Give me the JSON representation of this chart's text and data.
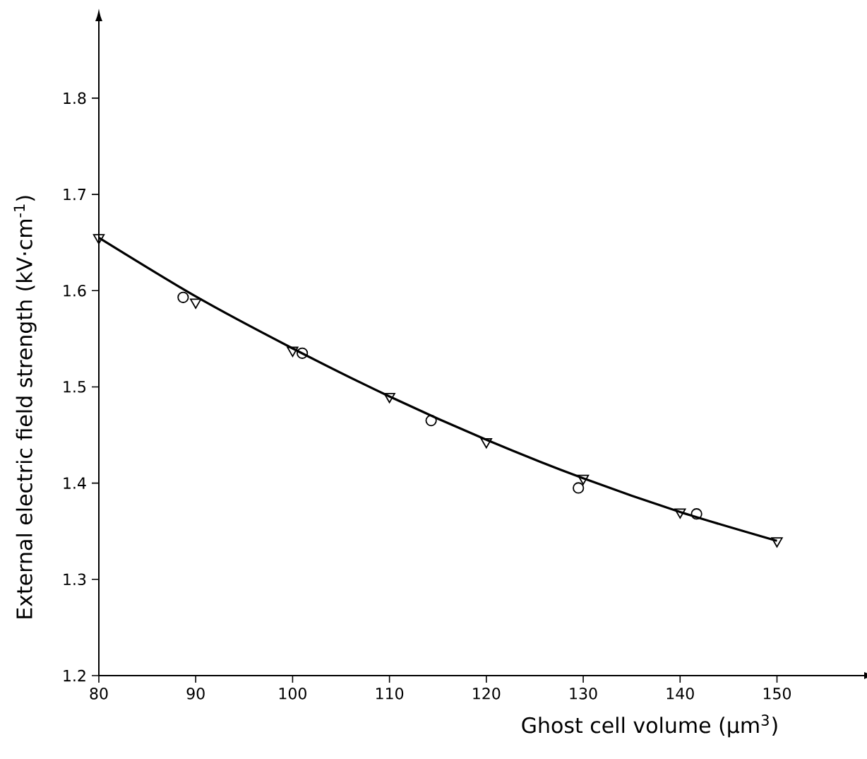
{
  "chart_data": {
    "type": "scatter",
    "xlabel": "Ghost cell volume (µm$^{3}$)",
    "ylabel": "External electric field strength (kV·cm$^{-1}$)",
    "xlim": [
      80,
      159
    ],
    "ylim": [
      1.2,
      1.88
    ],
    "xticks": [
      80,
      90,
      100,
      110,
      120,
      130,
      140,
      150
    ],
    "yticks": [
      1.2,
      1.3,
      1.4,
      1.5,
      1.6,
      1.7,
      1.8
    ],
    "series": [
      {
        "type": "scatter",
        "marker": "triangle",
        "color": "#000000",
        "x": [
          80,
          90,
          100,
          110,
          120,
          130,
          140,
          150
        ],
        "values": [
          1.655,
          1.588,
          1.538,
          1.49,
          1.443,
          1.405,
          1.37,
          1.34
        ]
      },
      {
        "type": "scatter",
        "marker": "circle",
        "color": "#000000",
        "x": [
          88.7,
          101,
          114.3,
          129.5,
          141.7
        ],
        "values": [
          1.593,
          1.535,
          1.465,
          1.395,
          1.368
        ]
      },
      {
        "type": "line",
        "marker": "none",
        "line_style": "solid",
        "color": "#000000",
        "x": [
          80,
          90,
          100,
          110,
          120,
          130,
          140,
          150
        ],
        "values": [
          1.655,
          1.594,
          1.54,
          1.49,
          1.445,
          1.405,
          1.37,
          1.34
        ]
      }
    ]
  }
}
